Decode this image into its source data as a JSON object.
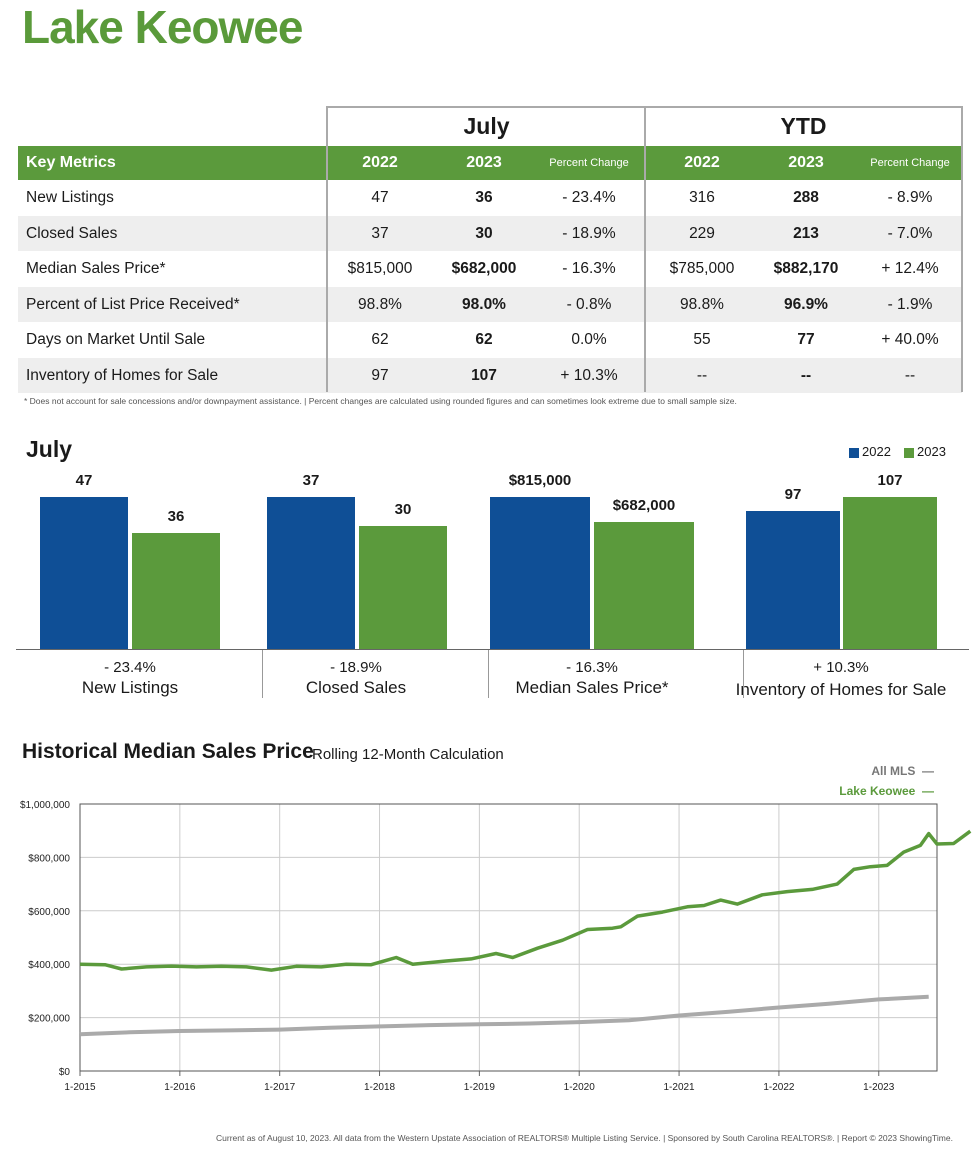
{
  "title": "Lake Keowee",
  "table": {
    "period_july": "July",
    "period_ytd": "YTD",
    "key_metrics": "Key Metrics",
    "col_2022": "2022",
    "col_2023": "2023",
    "col_pct": "Percent Change",
    "rows": [
      {
        "label": "New Listings",
        "j22": "47",
        "j23": "36",
        "jpc": "- 23.4%",
        "y22": "316",
        "y23": "288",
        "ypc": "- 8.9%"
      },
      {
        "label": "Closed Sales",
        "j22": "37",
        "j23": "30",
        "jpc": "- 18.9%",
        "y22": "229",
        "y23": "213",
        "ypc": "- 7.0%"
      },
      {
        "label": "Median Sales Price*",
        "j22": "$815,000",
        "j23": "$682,000",
        "jpc": "- 16.3%",
        "y22": "$785,000",
        "y23": "$882,170",
        "ypc": "+ 12.4%"
      },
      {
        "label": "Percent of List Price Received*",
        "j22": "98.8%",
        "j23": "98.0%",
        "jpc": "- 0.8%",
        "y22": "98.8%",
        "y23": "96.9%",
        "ypc": "- 1.9%"
      },
      {
        "label": "Days on Market Until Sale",
        "j22": "62",
        "j23": "62",
        "jpc": "0.0%",
        "y22": "55",
        "y23": "77",
        "ypc": "+ 40.0%"
      },
      {
        "label": "Inventory of Homes for Sale",
        "j22": "97",
        "j23": "107",
        "jpc": "+ 10.3%",
        "y22": "--",
        "y23": "--",
        "ypc": "--"
      }
    ],
    "footnote": "* Does not account for sale concessions and/or downpayment assistance.  |  Percent changes are calculated using rounded figures and can sometimes look extreme due to small sample size."
  },
  "bars": {
    "title": "July",
    "legend_2022": "2022",
    "legend_2023": "2023",
    "color_2022": "#0f4f96",
    "color_2023": "#5b9a3c"
  },
  "chart_data": [
    {
      "type": "bar",
      "title": "July",
      "series": [
        {
          "name": "2022",
          "values": [
            47,
            37,
            815000,
            97
          ]
        },
        {
          "name": "2023",
          "values": [
            36,
            30,
            682000,
            107
          ]
        }
      ],
      "groups": [
        {
          "category": "New Listings",
          "pct": "- 23.4%",
          "labels": [
            "47",
            "36"
          ]
        },
        {
          "category": "Closed Sales",
          "pct": "- 18.9%",
          "labels": [
            "37",
            "30"
          ]
        },
        {
          "category": "Median Sales Price*",
          "pct": "- 16.3%",
          "labels": [
            "$815,000",
            "$682,000"
          ]
        },
        {
          "category": "Inventory of Homes for Sale",
          "pct": "+ 10.3%",
          "labels": [
            "97",
            "107"
          ]
        }
      ]
    },
    {
      "type": "line",
      "title": "Historical Median Sales Price",
      "subtitle": "Rolling 12-Month Calculation",
      "ylim": [
        0,
        1000000
      ],
      "yticks": [
        "$0",
        "$200,000",
        "$400,000",
        "$600,000",
        "$800,000",
        "$1,000,000"
      ],
      "xticks": [
        "1-2015",
        "1-2016",
        "1-2017",
        "1-2018",
        "1-2019",
        "1-2020",
        "1-2021",
        "1-2022",
        "1-2023"
      ],
      "x_start": "1-2015",
      "x_end": "7-2023",
      "series": [
        {
          "name": "All MLS",
          "color": "#aaaaaa",
          "points": [
            [
              0,
              138000
            ],
            [
              6,
              145000
            ],
            [
              12,
              150000
            ],
            [
              18,
              152000
            ],
            [
              24,
              155000
            ],
            [
              30,
              162000
            ],
            [
              36,
              167000
            ],
            [
              42,
              172000
            ],
            [
              48,
              175000
            ],
            [
              54,
              178000
            ],
            [
              60,
              183000
            ],
            [
              66,
              190000
            ],
            [
              72,
              208000
            ],
            [
              78,
              222000
            ],
            [
              84,
              238000
            ],
            [
              90,
              252000
            ],
            [
              96,
              268000
            ],
            [
              102,
              278000
            ]
          ]
        },
        {
          "name": "Lake Keowee",
          "color": "#5b9a3c",
          "points": [
            [
              0,
              400000
            ],
            [
              3,
              398000
            ],
            [
              5,
              382000
            ],
            [
              8,
              390000
            ],
            [
              11,
              393000
            ],
            [
              14,
              390000
            ],
            [
              17,
              392000
            ],
            [
              20,
              390000
            ],
            [
              23,
              378000
            ],
            [
              26,
              392000
            ],
            [
              29,
              390000
            ],
            [
              32,
              400000
            ],
            [
              35,
              398000
            ],
            [
              38,
              425000
            ],
            [
              40,
              400000
            ],
            [
              44,
              412000
            ],
            [
              47,
              420000
            ],
            [
              50,
              440000
            ],
            [
              52,
              425000
            ],
            [
              55,
              460000
            ],
            [
              58,
              490000
            ],
            [
              61,
              530000
            ],
            [
              64,
              535000
            ],
            [
              65,
              540000
            ],
            [
              67,
              580000
            ],
            [
              70,
              595000
            ],
            [
              73,
              615000
            ],
            [
              75,
              620000
            ],
            [
              77,
              640000
            ],
            [
              79,
              625000
            ],
            [
              82,
              660000
            ],
            [
              85,
              672000
            ],
            [
              88,
              680000
            ],
            [
              91,
              700000
            ],
            [
              93,
              755000
            ],
            [
              95,
              765000
            ],
            [
              97,
              770000
            ],
            [
              99,
              820000
            ],
            [
              101,
              845000
            ],
            [
              103,
              850000
            ],
            [
              105,
              852000
            ],
            [
              107,
              898000
            ],
            [
              102,
              889000
            ]
          ]
        }
      ],
      "legend": [
        "All MLS",
        "Lake Keowee"
      ]
    }
  ],
  "footer": "Current as of August 10, 2023. All data from the Western Upstate Association of REALTORS® Multiple Listing Service.  |  Sponsored by South Carolina REALTORS®.  |  Report © 2023 ShowingTime."
}
